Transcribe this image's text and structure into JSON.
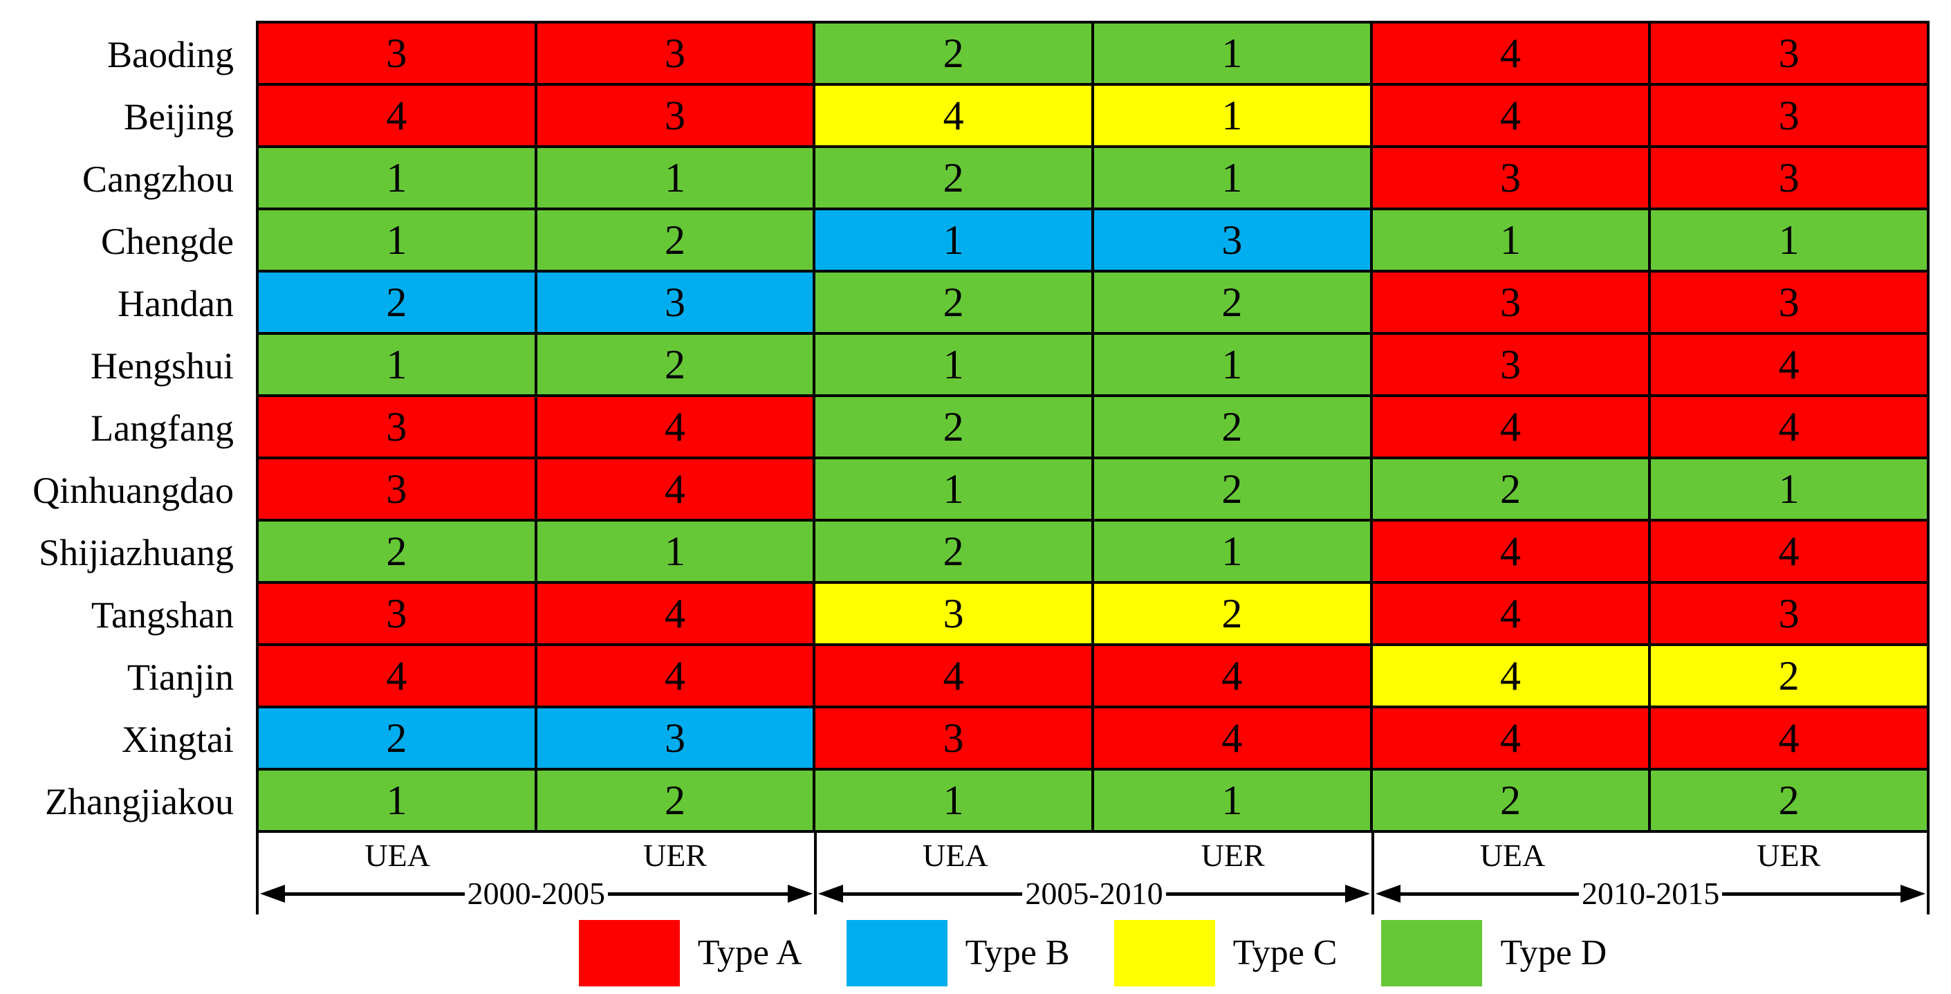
{
  "chart_data": {
    "type": "heatmap",
    "rows": [
      "Baoding",
      "Beijing",
      "Cangzhou",
      "Chengde",
      "Handan",
      "Hengshui",
      "Langfang",
      "Qinhuangdao",
      "Shijiazhuang",
      "Tangshan",
      "Tianjin",
      "Xingtai",
      "Zhangjiakou"
    ],
    "column_groups": [
      {
        "period": "2000-2005",
        "columns": [
          "UEA",
          "UER"
        ]
      },
      {
        "period": "2005-2010",
        "columns": [
          "UEA",
          "UER"
        ]
      },
      {
        "period": "2010-2015",
        "columns": [
          "UEA",
          "UER"
        ]
      }
    ],
    "type_colors": {
      "A": "#fd0000",
      "B": "#00aeef",
      "C": "#ffff00",
      "D": "#66c836"
    },
    "grid_line_color": "#000000",
    "cells": [
      {
        "city": "Baoding",
        "values": [
          3,
          3,
          2,
          1,
          4,
          3
        ],
        "types": [
          "A",
          "A",
          "D",
          "D",
          "A",
          "A"
        ]
      },
      {
        "city": "Beijing",
        "values": [
          4,
          3,
          4,
          1,
          4,
          3
        ],
        "types": [
          "A",
          "A",
          "C",
          "C",
          "A",
          "A"
        ]
      },
      {
        "city": "Cangzhou",
        "values": [
          1,
          1,
          2,
          1,
          3,
          3
        ],
        "types": [
          "D",
          "D",
          "D",
          "D",
          "A",
          "A"
        ]
      },
      {
        "city": "Chengde",
        "values": [
          1,
          2,
          1,
          3,
          1,
          1
        ],
        "types": [
          "D",
          "D",
          "B",
          "B",
          "D",
          "D"
        ]
      },
      {
        "city": "Handan",
        "values": [
          2,
          3,
          2,
          2,
          3,
          3
        ],
        "types": [
          "B",
          "B",
          "D",
          "D",
          "A",
          "A"
        ]
      },
      {
        "city": "Hengshui",
        "values": [
          1,
          2,
          1,
          1,
          3,
          4
        ],
        "types": [
          "D",
          "D",
          "D",
          "D",
          "A",
          "A"
        ]
      },
      {
        "city": "Langfang",
        "values": [
          3,
          4,
          2,
          2,
          4,
          4
        ],
        "types": [
          "A",
          "A",
          "D",
          "D",
          "A",
          "A"
        ]
      },
      {
        "city": "Qinhuangdao",
        "values": [
          3,
          4,
          1,
          2,
          2,
          1
        ],
        "types": [
          "A",
          "A",
          "D",
          "D",
          "D",
          "D"
        ]
      },
      {
        "city": "Shijiazhuang",
        "values": [
          2,
          1,
          2,
          1,
          4,
          4
        ],
        "types": [
          "D",
          "D",
          "D",
          "D",
          "A",
          "A"
        ]
      },
      {
        "city": "Tangshan",
        "values": [
          3,
          4,
          3,
          2,
          4,
          3
        ],
        "types": [
          "A",
          "A",
          "C",
          "C",
          "A",
          "A"
        ]
      },
      {
        "city": "Tianjin",
        "values": [
          4,
          4,
          4,
          4,
          4,
          2
        ],
        "types": [
          "A",
          "A",
          "A",
          "A",
          "C",
          "C"
        ]
      },
      {
        "city": "Xingtai",
        "values": [
          2,
          3,
          3,
          4,
          4,
          4
        ],
        "types": [
          "B",
          "B",
          "A",
          "A",
          "A",
          "A"
        ]
      },
      {
        "city": "Zhangjiakou",
        "values": [
          1,
          2,
          1,
          1,
          2,
          2
        ],
        "types": [
          "D",
          "D",
          "D",
          "D",
          "D",
          "D"
        ]
      }
    ],
    "legend": [
      {
        "label": "Type A",
        "type": "A"
      },
      {
        "label": "Type B",
        "type": "B"
      },
      {
        "label": "Type C",
        "type": "C"
      },
      {
        "label": "Type D",
        "type": "D"
      }
    ]
  }
}
